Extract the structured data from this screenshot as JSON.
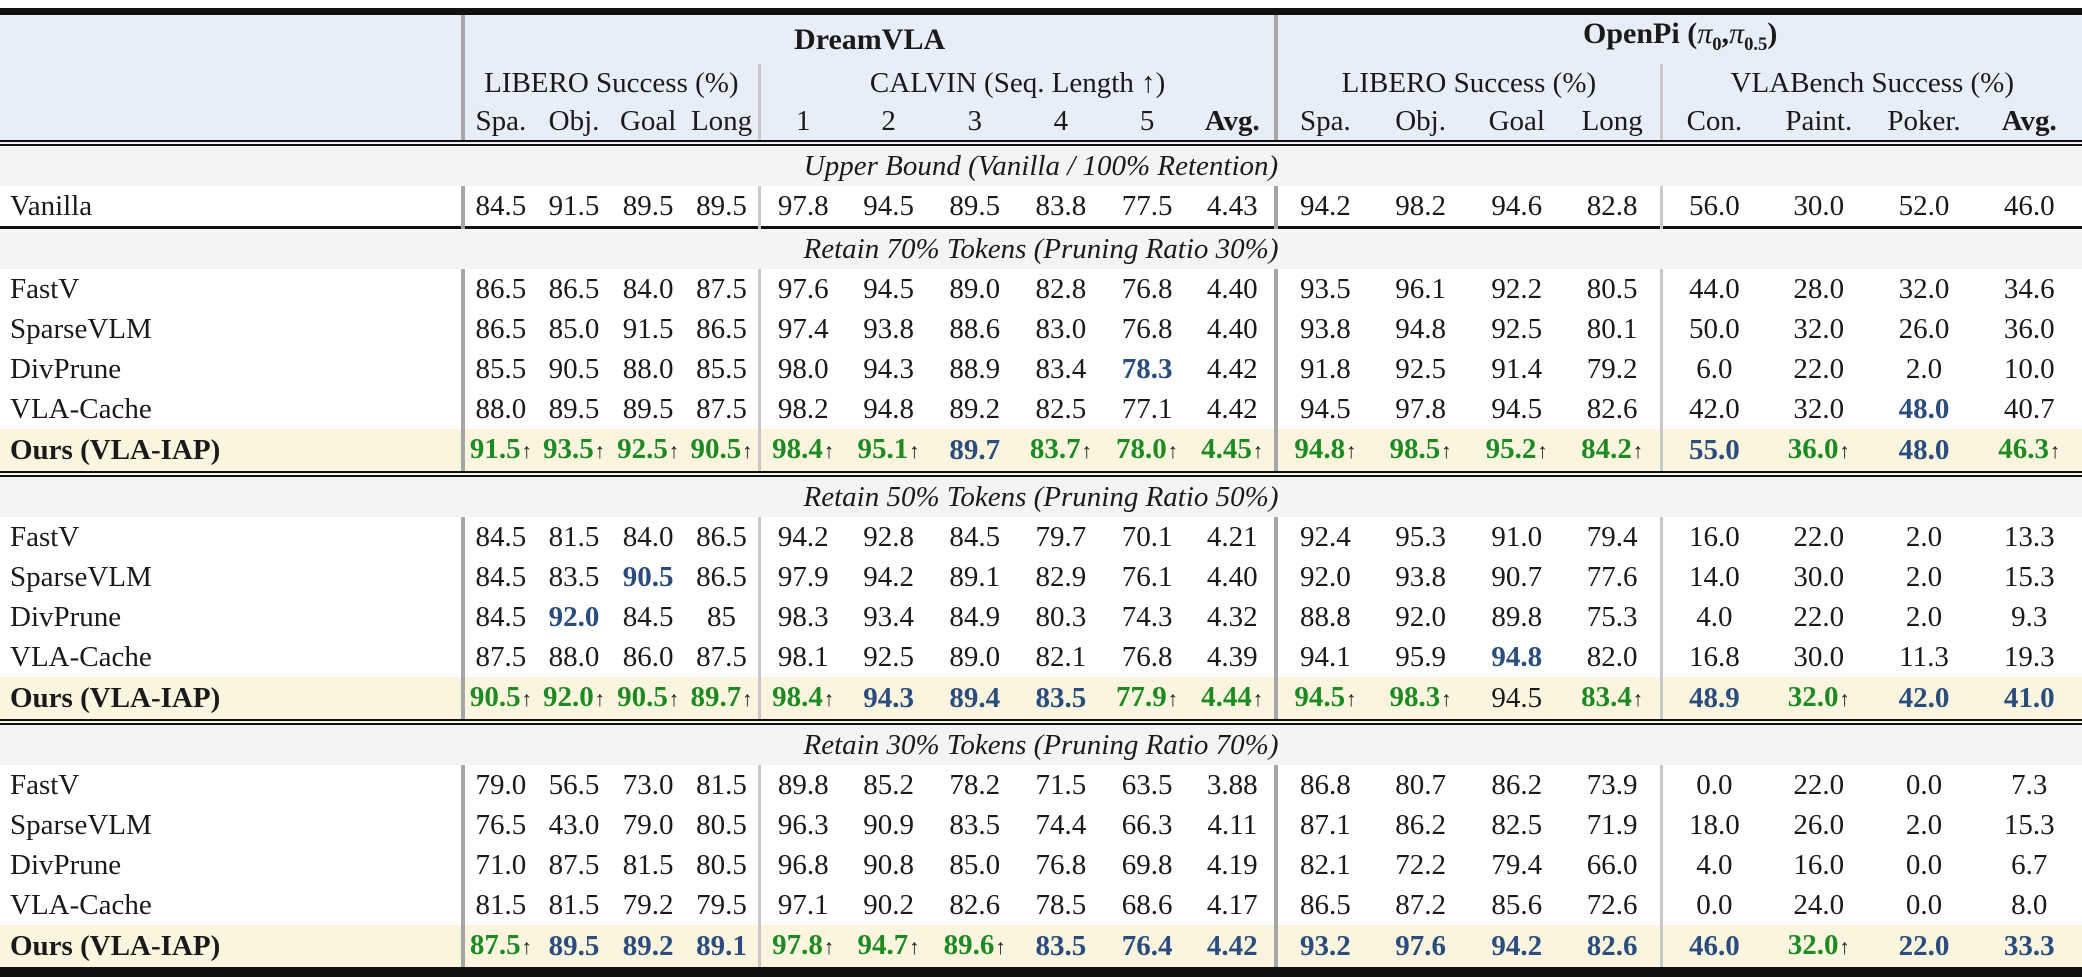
{
  "colors": {
    "accent_green": "#1e8b22",
    "accent_blue": "#2a4d7e",
    "header_bg": "#e8eef7",
    "section_bg": "#f4f4f4",
    "ours_row_bg": "#fbf5e0"
  },
  "arrow_char": "↑",
  "header": {
    "corner": "",
    "group1": "DreamVLA",
    "group2": {
      "name": "OpenPi",
      "open": " (",
      "pi": "π",
      "sub1": "0",
      "comma": ",",
      "sub2": "0.5",
      "close": ")"
    },
    "sub": [
      "LIBERO Success (%)",
      "CALVIN (Seq. Length ↑)",
      "LIBERO Success (%)",
      "VLABench Success (%)"
    ],
    "columns": [
      "Spa.",
      "Obj.",
      "Goal",
      "Long",
      "1",
      "2",
      "3",
      "4",
      "5",
      "Avg.",
      "Spa.",
      "Obj.",
      "Goal",
      "Long",
      "Con.",
      "Paint.",
      "Poker.",
      "Avg."
    ],
    "bold_columns": [
      9,
      17
    ]
  },
  "sections": [
    {
      "title": "Upper Bound (Vanilla / 100% Retention)",
      "rule": "none",
      "rows": [
        {
          "label": "Vanilla",
          "bold": false,
          "highlight": false,
          "cells": [
            "84.5",
            "91.5",
            "89.5",
            "89.5",
            "97.8",
            "94.5",
            "89.5",
            "83.8",
            "77.5",
            "4.43",
            "94.2",
            "98.2",
            "94.6",
            "82.8",
            "56.0",
            "30.0",
            "52.0",
            "46.0"
          ]
        }
      ]
    },
    {
      "title": "Retain 70% Tokens (Pruning Ratio 30%)",
      "rule": "single",
      "rows": [
        {
          "label": "FastV",
          "bold": false,
          "highlight": false,
          "cells": [
            "86.5",
            "86.5",
            "84.0",
            "87.5",
            "97.6",
            "94.5",
            "89.0",
            "82.8",
            "76.8",
            "4.40",
            "93.5",
            "96.1",
            "92.2",
            "80.5",
            "44.0",
            "28.0",
            "32.0",
            "34.6"
          ]
        },
        {
          "label": "SparseVLM",
          "bold": false,
          "highlight": false,
          "cells": [
            "86.5",
            "85.0",
            "91.5",
            "86.5",
            "97.4",
            "93.8",
            "88.6",
            "83.0",
            "76.8",
            "4.40",
            "93.8",
            "94.8",
            "92.5",
            "80.1",
            "50.0",
            "32.0",
            "26.0",
            "36.0"
          ]
        },
        {
          "label": "DivPrune",
          "bold": false,
          "highlight": false,
          "cells": [
            "85.5",
            "90.5",
            "88.0",
            "85.5",
            "98.0",
            "94.3",
            "88.9",
            "83.4",
            {
              "v": "78.3",
              "s": "blue"
            },
            "4.42",
            "91.8",
            "92.5",
            "91.4",
            "79.2",
            "6.0",
            "22.0",
            "2.0",
            "10.0"
          ]
        },
        {
          "label": "VLA-Cache",
          "bold": false,
          "highlight": false,
          "cells": [
            "88.0",
            "89.5",
            "89.5",
            "87.5",
            "98.2",
            "94.8",
            "89.2",
            "82.5",
            "77.1",
            "4.42",
            "94.5",
            "97.8",
            "94.5",
            "82.6",
            "42.0",
            "32.0",
            {
              "v": "48.0",
              "s": "blue"
            },
            "40.7"
          ]
        },
        {
          "label": "Ours (VLA-IAP)",
          "bold": true,
          "highlight": true,
          "cells": [
            {
              "v": "91.5",
              "s": "green",
              "a": true
            },
            {
              "v": "93.5",
              "s": "green",
              "a": true
            },
            {
              "v": "92.5",
              "s": "green",
              "a": true
            },
            {
              "v": "90.5",
              "s": "green",
              "a": true
            },
            {
              "v": "98.4",
              "s": "green",
              "a": true
            },
            {
              "v": "95.1",
              "s": "green",
              "a": true
            },
            {
              "v": "89.7",
              "s": "blue"
            },
            {
              "v": "83.7",
              "s": "green",
              "a": true
            },
            {
              "v": "78.0",
              "s": "green",
              "a": true
            },
            {
              "v": "4.45",
              "s": "green",
              "a": true
            },
            {
              "v": "94.8",
              "s": "green",
              "a": true
            },
            {
              "v": "98.5",
              "s": "green",
              "a": true
            },
            {
              "v": "95.2",
              "s": "green",
              "a": true
            },
            {
              "v": "84.2",
              "s": "green",
              "a": true
            },
            {
              "v": "55.0",
              "s": "blue"
            },
            {
              "v": "36.0",
              "s": "green",
              "a": true
            },
            {
              "v": "48.0",
              "s": "blue"
            },
            {
              "v": "46.3",
              "s": "green",
              "a": true
            }
          ]
        }
      ]
    },
    {
      "title": "Retain 50% Tokens (Pruning Ratio 50%)",
      "rule": "double",
      "rows": [
        {
          "label": "FastV",
          "bold": false,
          "highlight": false,
          "cells": [
            "84.5",
            "81.5",
            "84.0",
            "86.5",
            "94.2",
            "92.8",
            "84.5",
            "79.7",
            "70.1",
            "4.21",
            "92.4",
            "95.3",
            "91.0",
            "79.4",
            "16.0",
            "22.0",
            "2.0",
            "13.3"
          ]
        },
        {
          "label": "SparseVLM",
          "bold": false,
          "highlight": false,
          "cells": [
            "84.5",
            "83.5",
            {
              "v": "90.5",
              "s": "blue"
            },
            "86.5",
            "97.9",
            "94.2",
            "89.1",
            "82.9",
            "76.1",
            "4.40",
            "92.0",
            "93.8",
            "90.7",
            "77.6",
            "14.0",
            "30.0",
            "2.0",
            "15.3"
          ]
        },
        {
          "label": "DivPrune",
          "bold": false,
          "highlight": false,
          "cells": [
            "84.5",
            {
              "v": "92.0",
              "s": "blue"
            },
            "84.5",
            "85",
            "98.3",
            "93.4",
            "84.9",
            "80.3",
            "74.3",
            "4.32",
            "88.8",
            "92.0",
            "89.8",
            "75.3",
            "4.0",
            "22.0",
            "2.0",
            "9.3"
          ]
        },
        {
          "label": "VLA-Cache",
          "bold": false,
          "highlight": false,
          "cells": [
            "87.5",
            "88.0",
            "86.0",
            "87.5",
            "98.1",
            "92.5",
            "89.0",
            "82.1",
            "76.8",
            "4.39",
            "94.1",
            "95.9",
            {
              "v": "94.8",
              "s": "blue"
            },
            "82.0",
            "16.8",
            "30.0",
            "11.3",
            "19.3"
          ]
        },
        {
          "label": "Ours (VLA-IAP)",
          "bold": true,
          "highlight": true,
          "cells": [
            {
              "v": "90.5",
              "s": "green",
              "a": true
            },
            {
              "v": "92.0",
              "s": "green",
              "a": true
            },
            {
              "v": "90.5",
              "s": "green",
              "a": true
            },
            {
              "v": "89.7",
              "s": "green",
              "a": true
            },
            {
              "v": "98.4",
              "s": "green",
              "a": true
            },
            {
              "v": "94.3",
              "s": "blue"
            },
            {
              "v": "89.4",
              "s": "blue"
            },
            {
              "v": "83.5",
              "s": "blue"
            },
            {
              "v": "77.9",
              "s": "green",
              "a": true
            },
            {
              "v": "4.44",
              "s": "green",
              "a": true
            },
            {
              "v": "94.5",
              "s": "green",
              "a": true
            },
            {
              "v": "98.3",
              "s": "green",
              "a": true
            },
            "94.5",
            {
              "v": "83.4",
              "s": "green",
              "a": true
            },
            {
              "v": "48.9",
              "s": "blue"
            },
            {
              "v": "32.0",
              "s": "green",
              "a": true
            },
            {
              "v": "42.0",
              "s": "blue"
            },
            {
              "v": "41.0",
              "s": "blue"
            }
          ]
        }
      ]
    },
    {
      "title": "Retain 30% Tokens (Pruning Ratio 70%)",
      "rule": "double",
      "rows": [
        {
          "label": "FastV",
          "bold": false,
          "highlight": false,
          "cells": [
            "79.0",
            "56.5",
            "73.0",
            "81.5",
            "89.8",
            "85.2",
            "78.2",
            "71.5",
            "63.5",
            "3.88",
            "86.8",
            "80.7",
            "86.2",
            "73.9",
            "0.0",
            "22.0",
            "0.0",
            "7.3"
          ]
        },
        {
          "label": "SparseVLM",
          "bold": false,
          "highlight": false,
          "cells": [
            "76.5",
            "43.0",
            "79.0",
            "80.5",
            "96.3",
            "90.9",
            "83.5",
            "74.4",
            "66.3",
            "4.11",
            "87.1",
            "86.2",
            "82.5",
            "71.9",
            "18.0",
            "26.0",
            "2.0",
            "15.3"
          ]
        },
        {
          "label": "DivPrune",
          "bold": false,
          "highlight": false,
          "cells": [
            "71.0",
            "87.5",
            "81.5",
            "80.5",
            "96.8",
            "90.8",
            "85.0",
            "76.8",
            "69.8",
            "4.19",
            "82.1",
            "72.2",
            "79.4",
            "66.0",
            "4.0",
            "16.0",
            "0.0",
            "6.7"
          ]
        },
        {
          "label": "VLA-Cache",
          "bold": false,
          "highlight": false,
          "cells": [
            "81.5",
            "81.5",
            "79.2",
            "79.5",
            "97.1",
            "90.2",
            "82.6",
            "78.5",
            "68.6",
            "4.17",
            "86.5",
            "87.2",
            "85.6",
            "72.6",
            "0.0",
            "24.0",
            "0.0",
            "8.0"
          ]
        },
        {
          "label": "Ours (VLA-IAP)",
          "bold": true,
          "highlight": true,
          "cells": [
            {
              "v": "87.5",
              "s": "green",
              "a": true
            },
            {
              "v": "89.5",
              "s": "blue"
            },
            {
              "v": "89.2",
              "s": "blue"
            },
            {
              "v": "89.1",
              "s": "blue"
            },
            {
              "v": "97.8",
              "s": "green",
              "a": true
            },
            {
              "v": "94.7",
              "s": "green",
              "a": true
            },
            {
              "v": "89.6",
              "s": "green",
              "a": true
            },
            {
              "v": "83.5",
              "s": "blue"
            },
            {
              "v": "76.4",
              "s": "blue"
            },
            {
              "v": "4.42",
              "s": "blue"
            },
            {
              "v": "93.2",
              "s": "blue"
            },
            {
              "v": "97.6",
              "s": "blue"
            },
            {
              "v": "94.2",
              "s": "blue"
            },
            {
              "v": "82.6",
              "s": "blue"
            },
            {
              "v": "46.0",
              "s": "blue"
            },
            {
              "v": "32.0",
              "s": "green",
              "a": true
            },
            {
              "v": "22.0",
              "s": "blue"
            },
            {
              "v": "33.3",
              "s": "blue"
            }
          ]
        }
      ]
    }
  ]
}
